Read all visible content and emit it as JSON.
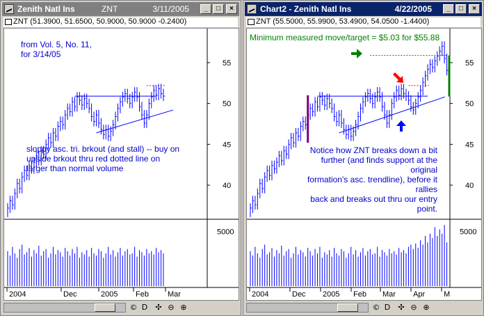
{
  "windows": [
    {
      "id": "left",
      "title": "Zenith Natl Ins",
      "symbol": "ZNT",
      "date": "3/11/2005",
      "info": "ZNT (51.3900, 51.6500, 50.9000, 50.9000 -0.2400)",
      "annotations": [
        {
          "lines": [
            "from Vol. 5, No. 11,",
            "for 3/14/05"
          ]
        },
        {
          "lines": [
            "sloppy asc. tri. brkout (and stall) -- buy on",
            "upside brkout thru red dotted line on",
            "larger than normal volume"
          ]
        }
      ]
    },
    {
      "id": "right",
      "title": "Chart2 - Zenith Natl Ins",
      "date": "4/22/2005",
      "info": "ZNT (55.5000, 55.9900, 53.4900, 54.0500 -1.4400)",
      "annotations": [
        {
          "lines": [
            "Minimum measured move/target = $5.03 for $55.88"
          ]
        },
        {
          "lines": [
            "Notice how ZNT breaks down a bit",
            "further (and finds support at the original",
            "formation's asc. trendline), before it rallies",
            "back and breaks out thru our entry point."
          ]
        }
      ]
    }
  ],
  "window_buttons": {
    "minimize": "_",
    "maximize": "□",
    "close": "×"
  },
  "status_buttons": [
    "©",
    "D",
    "✣",
    "⊖",
    "⊕"
  ],
  "icons": {
    "chart-icon": "chart",
    "arrow-right-icon": "green",
    "arrow-down-right-icon": "red",
    "arrow-up-icon": "blue"
  },
  "colors": {
    "price": "#0000ff",
    "volume": "#0000ff",
    "trendline": "#0000ff",
    "entry": "#ff0000",
    "target": "#008000",
    "base": "#800080",
    "active_title": "#0a246a",
    "inactive_title": "#808080"
  },
  "chart_data": [
    {
      "type": "bar",
      "subtype": "ohlc-with-volume",
      "y_axis_ticks": [
        40,
        45,
        50,
        55
      ],
      "x_axis_ticks": [
        "2004",
        "Dec",
        "2005",
        "Feb",
        "Mar"
      ],
      "volume_axis_ticks": [
        5000
      ],
      "y_range": [
        36,
        59
      ],
      "closes": [
        37.2,
        38.1,
        37.6,
        39.0,
        40.2,
        39.6,
        41.0,
        41.8,
        41.2,
        42.4,
        42.0,
        42.8,
        43.6,
        43.0,
        44.2,
        43.8,
        45.0,
        45.8,
        45.2,
        46.4,
        46.0,
        47.2,
        47.8,
        47.4,
        48.6,
        49.4,
        49.0,
        50.2,
        49.6,
        50.8,
        50.4,
        49.8,
        50.6,
        50.0,
        49.4,
        48.4,
        47.8,
        48.6,
        47.6,
        46.8,
        46.2,
        46.8,
        46.0,
        46.6,
        47.4,
        48.4,
        49.4,
        50.2,
        50.8,
        51.2,
        50.6,
        50.0,
        50.8,
        51.4,
        50.8,
        49.6,
        48.6,
        47.6,
        48.6,
        50.0,
        50.8,
        51.6,
        51.0,
        51.8,
        51.2,
        50.9
      ],
      "volumes": [
        3200,
        2800,
        3600,
        3000,
        2600,
        3400,
        3800,
        2900,
        3100,
        3500,
        2700,
        3300,
        3000,
        3700,
        2800,
        3200,
        3400,
        2600,
        3000,
        3600,
        2900,
        3300,
        3100,
        2700,
        3500,
        3200,
        2800,
        3400,
        3000,
        3600,
        2600,
        3100,
        2900,
        3300,
        2700,
        3500,
        3000,
        2800,
        3400,
        3200,
        2600,
        3000,
        3600,
        2900,
        3300,
        2700,
        3100,
        3500,
        2800,
        3200,
        3400,
        2900,
        3000,
        3600,
        2700,
        3300,
        3100,
        2800,
        3400,
        3000,
        3200,
        2900,
        3500,
        3100,
        3300,
        3000
      ],
      "resistance": 50.9,
      "entry_level": 52.2,
      "trendline": {
        "from": {
          "x": 37,
          "y": 46.4
        },
        "to": {
          "x": 65,
          "y": 49.2
        }
      }
    },
    {
      "type": "bar",
      "subtype": "ohlc-with-volume",
      "y_axis_ticks": [
        40,
        45,
        50,
        55
      ],
      "x_axis_ticks": [
        "2004",
        "Dec",
        "2005",
        "Feb",
        "Mar",
        "Apr",
        "M"
      ],
      "volume_axis_ticks": [
        5000
      ],
      "y_range": [
        36,
        59
      ],
      "closes": [
        37.2,
        38.1,
        37.6,
        39.0,
        40.2,
        39.6,
        41.0,
        41.8,
        41.2,
        42.4,
        42.0,
        42.8,
        43.6,
        43.0,
        44.2,
        43.8,
        45.0,
        45.8,
        45.2,
        46.4,
        46.0,
        47.2,
        47.8,
        47.4,
        48.6,
        49.4,
        49.0,
        50.2,
        49.6,
        50.8,
        50.4,
        49.8,
        50.6,
        50.0,
        49.4,
        48.4,
        47.8,
        48.6,
        47.6,
        46.8,
        46.2,
        46.8,
        46.0,
        46.6,
        47.4,
        48.4,
        49.4,
        50.2,
        50.8,
        51.2,
        50.6,
        50.0,
        50.8,
        51.4,
        50.8,
        49.6,
        48.6,
        47.6,
        48.6,
        50.0,
        50.8,
        51.6,
        51.0,
        51.8,
        51.2,
        50.9,
        50.4,
        49.6,
        49.2,
        50.0,
        50.8,
        51.6,
        52.6,
        53.4,
        54.2,
        54.8,
        54.4,
        55.2,
        55.8,
        56.4,
        57.0,
        55.5,
        54.05
      ],
      "volumes": [
        3200,
        2800,
        3600,
        3000,
        2600,
        3400,
        3800,
        2900,
        3100,
        3500,
        2700,
        3300,
        3000,
        3700,
        2800,
        3200,
        3400,
        2600,
        3000,
        3600,
        2900,
        3300,
        3100,
        2700,
        3500,
        3200,
        2800,
        3400,
        3000,
        3600,
        2600,
        3100,
        2900,
        3300,
        2700,
        3500,
        3000,
        2800,
        3400,
        3200,
        2600,
        3000,
        3600,
        2900,
        3300,
        2700,
        3100,
        3500,
        2800,
        3200,
        3400,
        2900,
        3000,
        3600,
        2700,
        3300,
        3100,
        2800,
        3400,
        3000,
        3200,
        2900,
        3500,
        3100,
        3300,
        3000,
        3600,
        3800,
        3400,
        3900,
        3500,
        4200,
        3800,
        4600,
        4000,
        4800,
        4400,
        5400,
        4600,
        5200,
        4800,
        5600,
        4000
      ],
      "resistance": 50.9,
      "entry_level": 52.2,
      "target_level": 55.88,
      "measured_move": 5.03,
      "base_height": [
        45.2,
        51.0
      ],
      "trendline": {
        "from": {
          "x": 37,
          "y": 46.4
        },
        "to": {
          "x": 80,
          "y": 50.8
        }
      }
    }
  ]
}
